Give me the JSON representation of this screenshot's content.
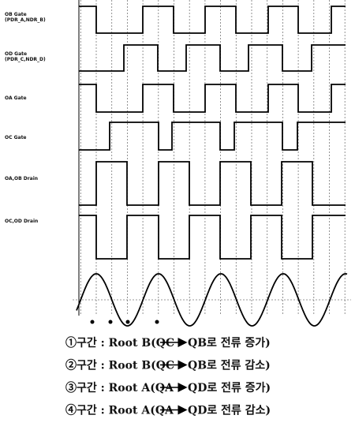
{
  "signals": [
    {
      "label": "OB Gate",
      "sublabel": "(PDR_A,NDR_B)"
    },
    {
      "label": "OD Gate",
      "sublabel": "(PDR_C,NDR_D)"
    },
    {
      "label": "OA Gate"
    },
    {
      "label": "OC Gate"
    },
    {
      "label": "OA,OB Drain"
    },
    {
      "label": "OC,OD Drain"
    }
  ],
  "legend": [
    {
      "start": "①구간 : Root B(QC",
      "end": "QB로 전류 증가)"
    },
    {
      "start": "②구간 : Root B(QC",
      "end": "QB로 전류 감소)"
    },
    {
      "start": "③구간 : Root A(QA",
      "end": "QD로 전류 증가)"
    },
    {
      "start": "④구간 : Root A(QA",
      "end": "QD로 전류 감소)"
    }
  ]
}
